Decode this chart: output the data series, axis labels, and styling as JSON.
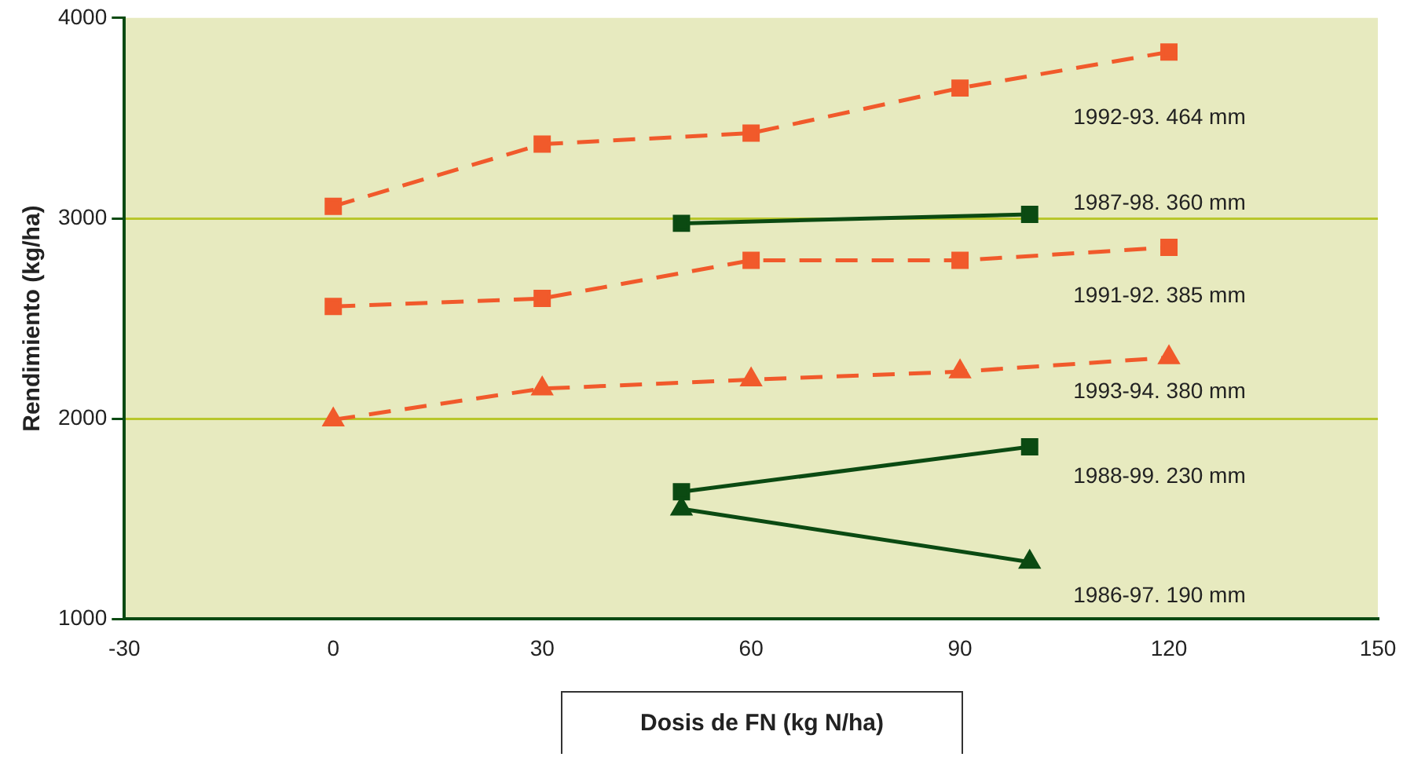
{
  "chart_data": {
    "type": "line",
    "xlabel": "Dosis de FN (kg N/ha)",
    "ylabel": "Rendimiento (kg/ha)",
    "xlim": [
      -30,
      150
    ],
    "xticks": [
      -30,
      0,
      30,
      60,
      90,
      120,
      150
    ],
    "ylim": [
      1000,
      4000
    ],
    "yticks": [
      1000,
      2000,
      3000,
      4000
    ],
    "grid": "y",
    "legend": false,
    "series": [
      {
        "name": "1992-93. 464 mm",
        "color": "#f15a2b",
        "marker": "square",
        "line_style": "dashed",
        "x": [
          0,
          30,
          60,
          90,
          120
        ],
        "values": [
          3060,
          3370,
          3425,
          3650,
          3830
        ]
      },
      {
        "name": "1987-98. 360 mm",
        "color": "#0b4a12",
        "marker": "square",
        "line_style": "solid",
        "x": [
          50,
          100
        ],
        "values": [
          2975,
          3020
        ]
      },
      {
        "name": "1991-92. 385 mm",
        "color": "#f15a2b",
        "marker": "square",
        "line_style": "dashed",
        "x": [
          0,
          30,
          60,
          90,
          120
        ],
        "values": [
          2560,
          2600,
          2790,
          2790,
          2855
        ]
      },
      {
        "name": "1993-94. 380 mm",
        "color": "#f15a2b",
        "marker": "triangle",
        "line_style": "dashed",
        "x": [
          0,
          30,
          60,
          90,
          120
        ],
        "values": [
          1995,
          2150,
          2195,
          2235,
          2305
        ]
      },
      {
        "name": "1988-99. 230 mm",
        "color": "#0b4a12",
        "marker": "square",
        "line_style": "solid",
        "x": [
          50,
          100
        ],
        "values": [
          1635,
          1860
        ]
      },
      {
        "name": "1986-97. 190 mm",
        "color": "#0b4a12",
        "marker": "triangle",
        "line_style": "solid",
        "x": [
          50,
          100
        ],
        "values": [
          1550,
          1285
        ]
      }
    ]
  }
}
